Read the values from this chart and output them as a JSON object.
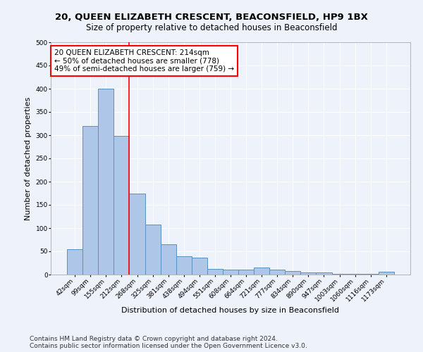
{
  "title1": "20, QUEEN ELIZABETH CRESCENT, BEACONSFIELD, HP9 1BX",
  "title2": "Size of property relative to detached houses in Beaconsfield",
  "xlabel": "Distribution of detached houses by size in Beaconsfield",
  "ylabel": "Number of detached properties",
  "categories": [
    "42sqm",
    "99sqm",
    "155sqm",
    "212sqm",
    "268sqm",
    "325sqm",
    "381sqm",
    "438sqm",
    "494sqm",
    "551sqm",
    "608sqm",
    "664sqm",
    "721sqm",
    "777sqm",
    "834sqm",
    "890sqm",
    "947sqm",
    "1003sqm",
    "1060sqm",
    "1116sqm",
    "1173sqm"
  ],
  "values": [
    55,
    320,
    400,
    298,
    175,
    108,
    65,
    40,
    36,
    12,
    11,
    11,
    15,
    10,
    8,
    5,
    4,
    2,
    1,
    1,
    6
  ],
  "bar_color": "#aec6e8",
  "bar_edge_color": "#5a8fc2",
  "annotation_box_text": "20 QUEEN ELIZABETH CRESCENT: 214sqm\n← 50% of detached houses are smaller (778)\n49% of semi-detached houses are larger (759) →",
  "ylim": [
    0,
    500
  ],
  "yticks": [
    0,
    50,
    100,
    150,
    200,
    250,
    300,
    350,
    400,
    450,
    500
  ],
  "footer1": "Contains HM Land Registry data © Crown copyright and database right 2024.",
  "footer2": "Contains public sector information licensed under the Open Government Licence v3.0.",
  "bg_color": "#eef2fa",
  "grid_color": "#ffffff",
  "red_line_x": 3.5,
  "title1_fontsize": 9.5,
  "title2_fontsize": 8.5,
  "tick_fontsize": 6.5,
  "ylabel_fontsize": 8,
  "xlabel_fontsize": 8,
  "footer_fontsize": 6.5,
  "ann_fontsize": 7.5
}
